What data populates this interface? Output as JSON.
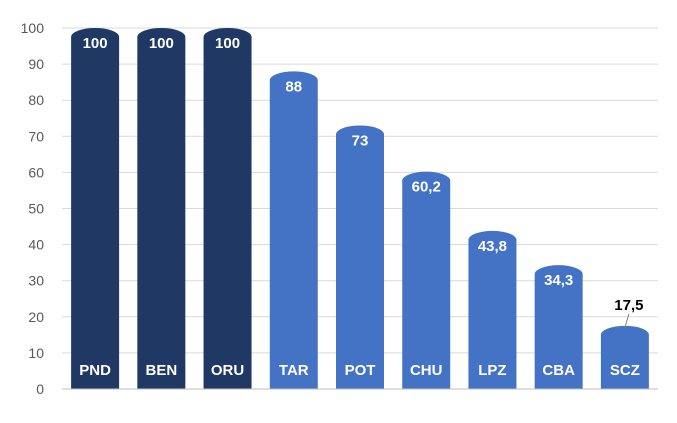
{
  "chart_data": {
    "type": "bar",
    "categories": [
      "PND",
      "BEN",
      "ORU",
      "TAR",
      "POT",
      "CHU",
      "LPZ",
      "CBA",
      "SCZ"
    ],
    "values": [
      100,
      100,
      100,
      88,
      73,
      60.2,
      43.8,
      34.3,
      17.5
    ],
    "data_labels": [
      "100",
      "100",
      "100",
      "88",
      "73",
      "60,2",
      "43,8",
      "34,3",
      "17,5"
    ],
    "ylim": [
      0,
      100
    ],
    "yticks": [
      "0",
      "10",
      "20",
      "30",
      "40",
      "50",
      "60",
      "70",
      "80",
      "90",
      "100"
    ],
    "grid": true,
    "legend": "none",
    "title": "",
    "xlabel": "",
    "ylabel": "",
    "colors": {
      "dark_bar": "#1f3864",
      "light_bar": "#4472c4",
      "grid": "#d9d9d9",
      "axis": "#bfbfbf",
      "tick_text": "#595959",
      "outside_label": "#000000",
      "inside_label": "#ffffff"
    },
    "bar_colors": [
      "dark_bar",
      "dark_bar",
      "dark_bar",
      "light_bar",
      "light_bar",
      "light_bar",
      "light_bar",
      "light_bar",
      "light_bar"
    ]
  }
}
